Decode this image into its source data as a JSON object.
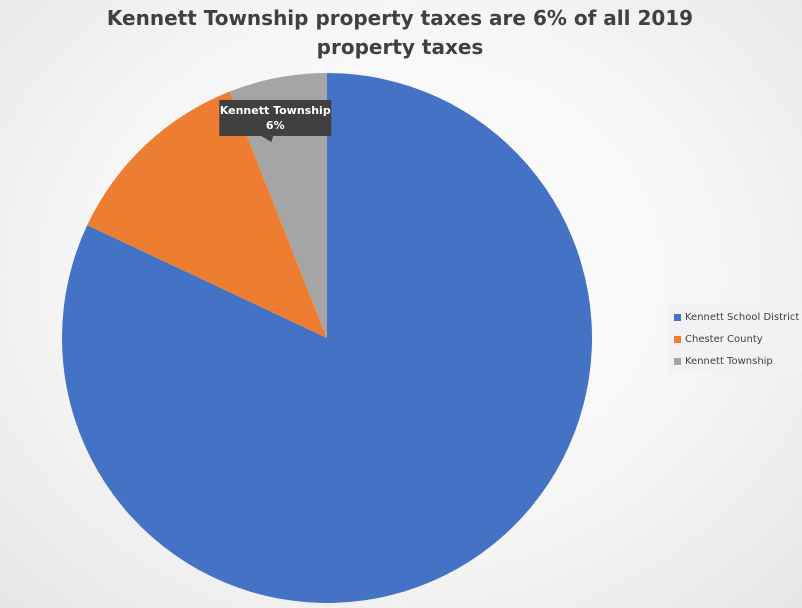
{
  "chart_data": {
    "type": "pie",
    "title": "Kennett Township property taxes are 6% of all 2019 property taxes",
    "categories": [
      "Kennett  School District",
      "Chester County",
      "Kennett Township"
    ],
    "values": [
      82,
      12,
      6
    ],
    "colors": [
      "#4472C4",
      "#ED7D31",
      "#A5A5A5"
    ],
    "start_angle_deg": 0,
    "direction": "clockwise",
    "data_labels": [
      {
        "index": 2,
        "lines": [
          "Kennett Township",
          "6%"
        ]
      }
    ],
    "legend": {
      "placement": "right",
      "items": [
        {
          "label": "Kennett  School District",
          "color": "#4472C4"
        },
        {
          "label": "Chester County",
          "color": "#ED7D31"
        },
        {
          "label": "Kennett Township",
          "color": "#A5A5A5"
        }
      ]
    }
  }
}
